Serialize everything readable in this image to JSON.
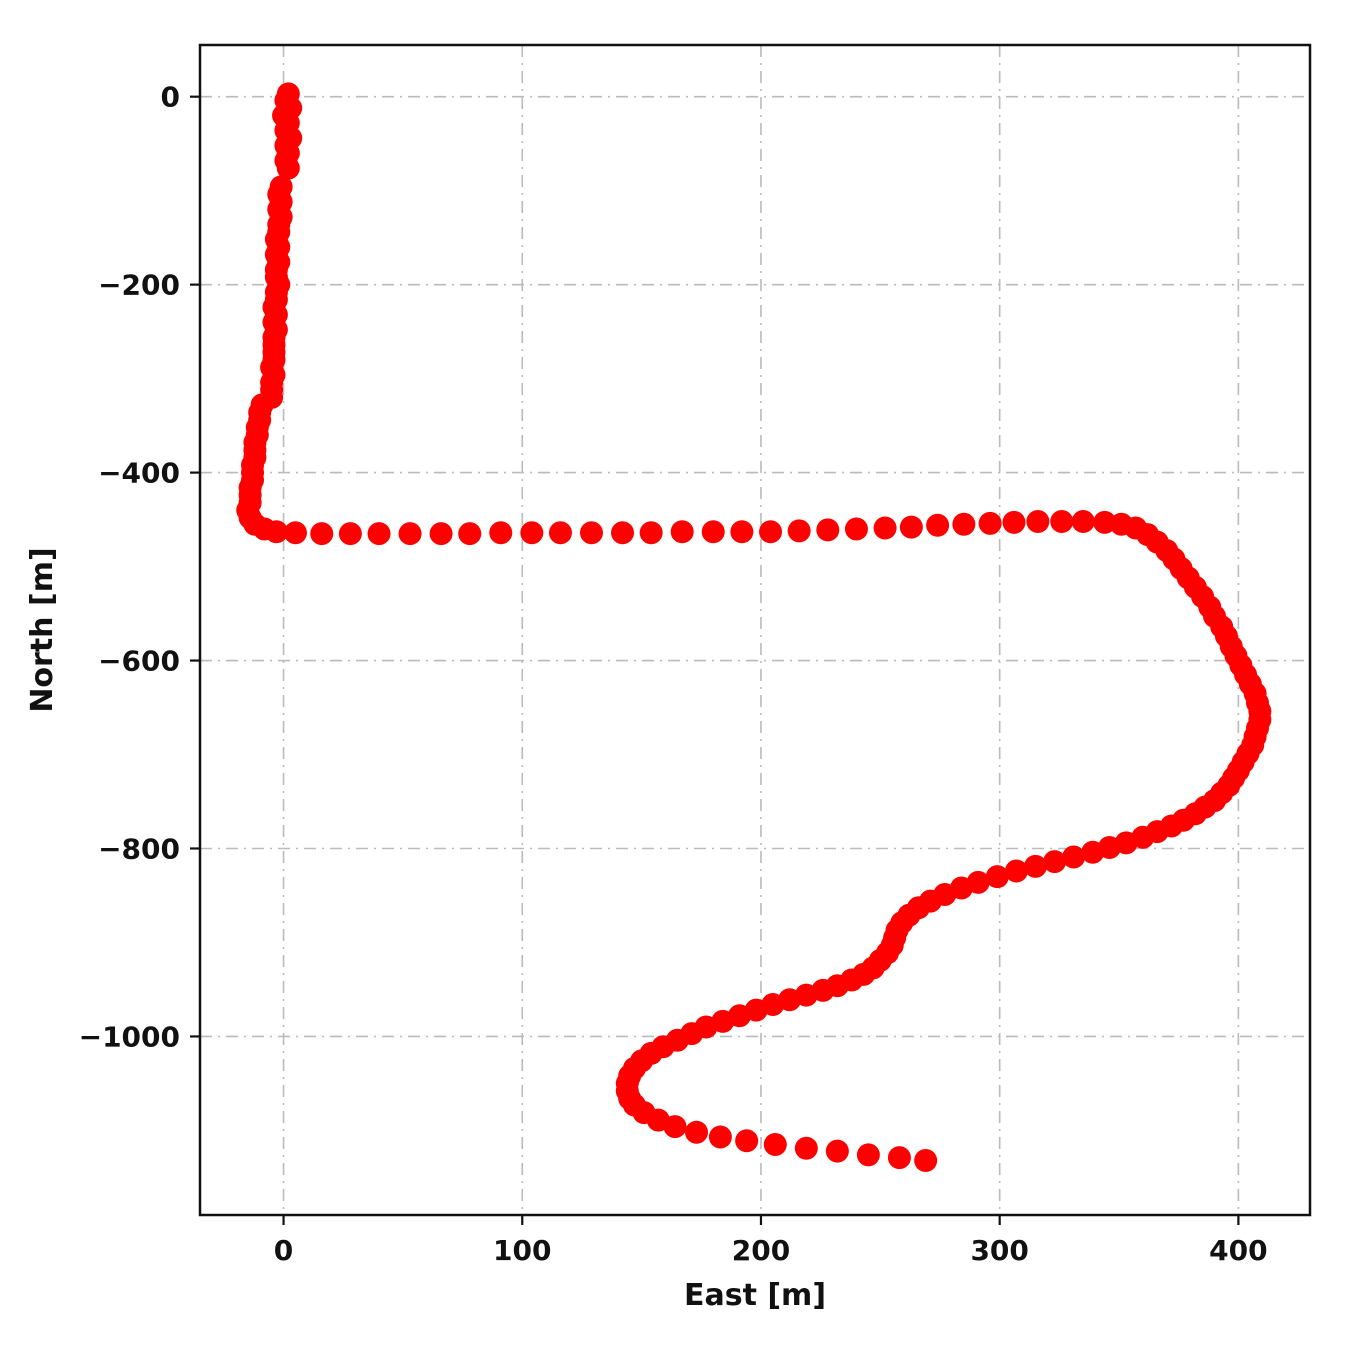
{
  "chart_data": {
    "type": "scatter",
    "title": "",
    "xlabel": "East [m]",
    "ylabel": "North [m]",
    "xlim": [
      -35,
      430
    ],
    "ylim": [
      -1190,
      55
    ],
    "xticks": [
      0,
      100,
      200,
      300,
      400
    ],
    "yticks": [
      0,
      -200,
      -400,
      -600,
      -800,
      -1000
    ],
    "xtick_labels": [
      "0",
      "100",
      "200",
      "300",
      "400"
    ],
    "ytick_labels": [
      "0",
      "−200",
      "−400",
      "−600",
      "−800",
      "−1000"
    ],
    "grid": true,
    "grid_style": "dashdot",
    "grid_color": "#bbbbbb",
    "frame_color": "#111111",
    "marker_color": "#ff0000",
    "marker_radius_px": 11.5,
    "legend": null,
    "points": [
      [
        2,
        3
      ],
      [
        1,
        -4
      ],
      [
        3,
        -12
      ],
      [
        0,
        -20
      ],
      [
        2,
        -28
      ],
      [
        1,
        -36
      ],
      [
        3,
        -44
      ],
      [
        1,
        -52
      ],
      [
        2,
        -60
      ],
      [
        1,
        -68
      ],
      [
        2,
        -76
      ],
      [
        -1,
        -96
      ],
      [
        -2,
        -104
      ],
      [
        -1,
        -112
      ],
      [
        -2,
        -120
      ],
      [
        -1,
        -128
      ],
      [
        -2,
        -136
      ],
      [
        -2,
        -144
      ],
      [
        -3,
        -152
      ],
      [
        -2,
        -160
      ],
      [
        -3,
        -168
      ],
      [
        -2,
        -176
      ],
      [
        -3,
        -184
      ],
      [
        -3,
        -192
      ],
      [
        -2,
        -200
      ],
      [
        -3,
        -208
      ],
      [
        -3,
        -216
      ],
      [
        -4,
        -224
      ],
      [
        -3,
        -232
      ],
      [
        -4,
        -240
      ],
      [
        -3,
        -248
      ],
      [
        -4,
        -256
      ],
      [
        -4,
        -264
      ],
      [
        -4,
        -272
      ],
      [
        -4,
        -280
      ],
      [
        -5,
        -288
      ],
      [
        -4,
        -296
      ],
      [
        -5,
        -304
      ],
      [
        -5,
        -312
      ],
      [
        -5,
        -320
      ],
      [
        -9,
        -328
      ],
      [
        -10,
        -336
      ],
      [
        -10,
        -344
      ],
      [
        -11,
        -352
      ],
      [
        -11,
        -360
      ],
      [
        -12,
        -368
      ],
      [
        -12,
        -376
      ],
      [
        -12,
        -384
      ],
      [
        -13,
        -392
      ],
      [
        -13,
        -400
      ],
      [
        -13,
        -408
      ],
      [
        -14,
        -416
      ],
      [
        -14,
        -424
      ],
      [
        -14,
        -432
      ],
      [
        -15,
        -440
      ],
      [
        -14,
        -448
      ],
      [
        -12,
        -455
      ],
      [
        -8,
        -460
      ],
      [
        -3,
        -463
      ],
      [
        5,
        -464
      ],
      [
        16,
        -465
      ],
      [
        28,
        -465
      ],
      [
        40,
        -465
      ],
      [
        53,
        -465
      ],
      [
        66,
        -465
      ],
      [
        78,
        -465
      ],
      [
        91,
        -464
      ],
      [
        104,
        -464
      ],
      [
        116,
        -464
      ],
      [
        129,
        -464
      ],
      [
        142,
        -464
      ],
      [
        154,
        -464
      ],
      [
        167,
        -463
      ],
      [
        180,
        -463
      ],
      [
        192,
        -463
      ],
      [
        204,
        -463
      ],
      [
        216,
        -462
      ],
      [
        228,
        -461
      ],
      [
        240,
        -460
      ],
      [
        252,
        -459
      ],
      [
        263,
        -458
      ],
      [
        274,
        -456
      ],
      [
        285,
        -455
      ],
      [
        296,
        -454
      ],
      [
        306,
        -453
      ],
      [
        316,
        -452
      ],
      [
        326,
        -452
      ],
      [
        335,
        -452
      ],
      [
        344,
        -453
      ],
      [
        351,
        -455
      ],
      [
        357,
        -459
      ],
      [
        362,
        -466
      ],
      [
        366,
        -474
      ],
      [
        370,
        -483
      ],
      [
        373,
        -492
      ],
      [
        376,
        -502
      ],
      [
        379,
        -512
      ],
      [
        382,
        -522
      ],
      [
        385,
        -532
      ],
      [
        388,
        -543
      ],
      [
        390,
        -553
      ],
      [
        393,
        -564
      ],
      [
        395,
        -574
      ],
      [
        397,
        -585
      ],
      [
        399,
        -595
      ],
      [
        401,
        -605
      ],
      [
        403,
        -615
      ],
      [
        405,
        -625
      ],
      [
        407,
        -635
      ],
      [
        408,
        -645
      ],
      [
        409,
        -654
      ],
      [
        409,
        -663
      ],
      [
        408,
        -672
      ],
      [
        407,
        -681
      ],
      [
        406,
        -690
      ],
      [
        404,
        -699
      ],
      [
        402,
        -708
      ],
      [
        400,
        -717
      ],
      [
        398,
        -725
      ],
      [
        396,
        -733
      ],
      [
        393,
        -741
      ],
      [
        390,
        -749
      ],
      [
        386,
        -756
      ],
      [
        382,
        -763
      ],
      [
        377,
        -770
      ],
      [
        372,
        -776
      ],
      [
        366,
        -782
      ],
      [
        360,
        -788
      ],
      [
        353,
        -794
      ],
      [
        346,
        -799
      ],
      [
        339,
        -804
      ],
      [
        331,
        -809
      ],
      [
        323,
        -814
      ],
      [
        315,
        -819
      ],
      [
        307,
        -824
      ],
      [
        299,
        -830
      ],
      [
        291,
        -836
      ],
      [
        284,
        -842
      ],
      [
        277,
        -849
      ],
      [
        271,
        -856
      ],
      [
        266,
        -863
      ],
      [
        262,
        -871
      ],
      [
        259,
        -879
      ],
      [
        257,
        -887
      ],
      [
        256,
        -895
      ],
      [
        255,
        -903
      ],
      [
        253,
        -911
      ],
      [
        250,
        -919
      ],
      [
        247,
        -927
      ],
      [
        243,
        -934
      ],
      [
        238,
        -940
      ],
      [
        232,
        -946
      ],
      [
        226,
        -951
      ],
      [
        219,
        -956
      ],
      [
        212,
        -961
      ],
      [
        205,
        -966
      ],
      [
        198,
        -972
      ],
      [
        191,
        -978
      ],
      [
        184,
        -984
      ],
      [
        177,
        -990
      ],
      [
        171,
        -997
      ],
      [
        165,
        -1004
      ],
      [
        159,
        -1011
      ],
      [
        154,
        -1018
      ],
      [
        150,
        -1026
      ],
      [
        147,
        -1034
      ],
      [
        145,
        -1042
      ],
      [
        144,
        -1050
      ],
      [
        144,
        -1058
      ],
      [
        145,
        -1066
      ],
      [
        147,
        -1073
      ],
      [
        151,
        -1081
      ],
      [
        157,
        -1089
      ],
      [
        164,
        -1096
      ],
      [
        173,
        -1102
      ],
      [
        183,
        -1107
      ],
      [
        194,
        -1111
      ],
      [
        206,
        -1115
      ],
      [
        219,
        -1119
      ],
      [
        232,
        -1122
      ],
      [
        245,
        -1126
      ],
      [
        258,
        -1129
      ],
      [
        269,
        -1132
      ]
    ]
  }
}
